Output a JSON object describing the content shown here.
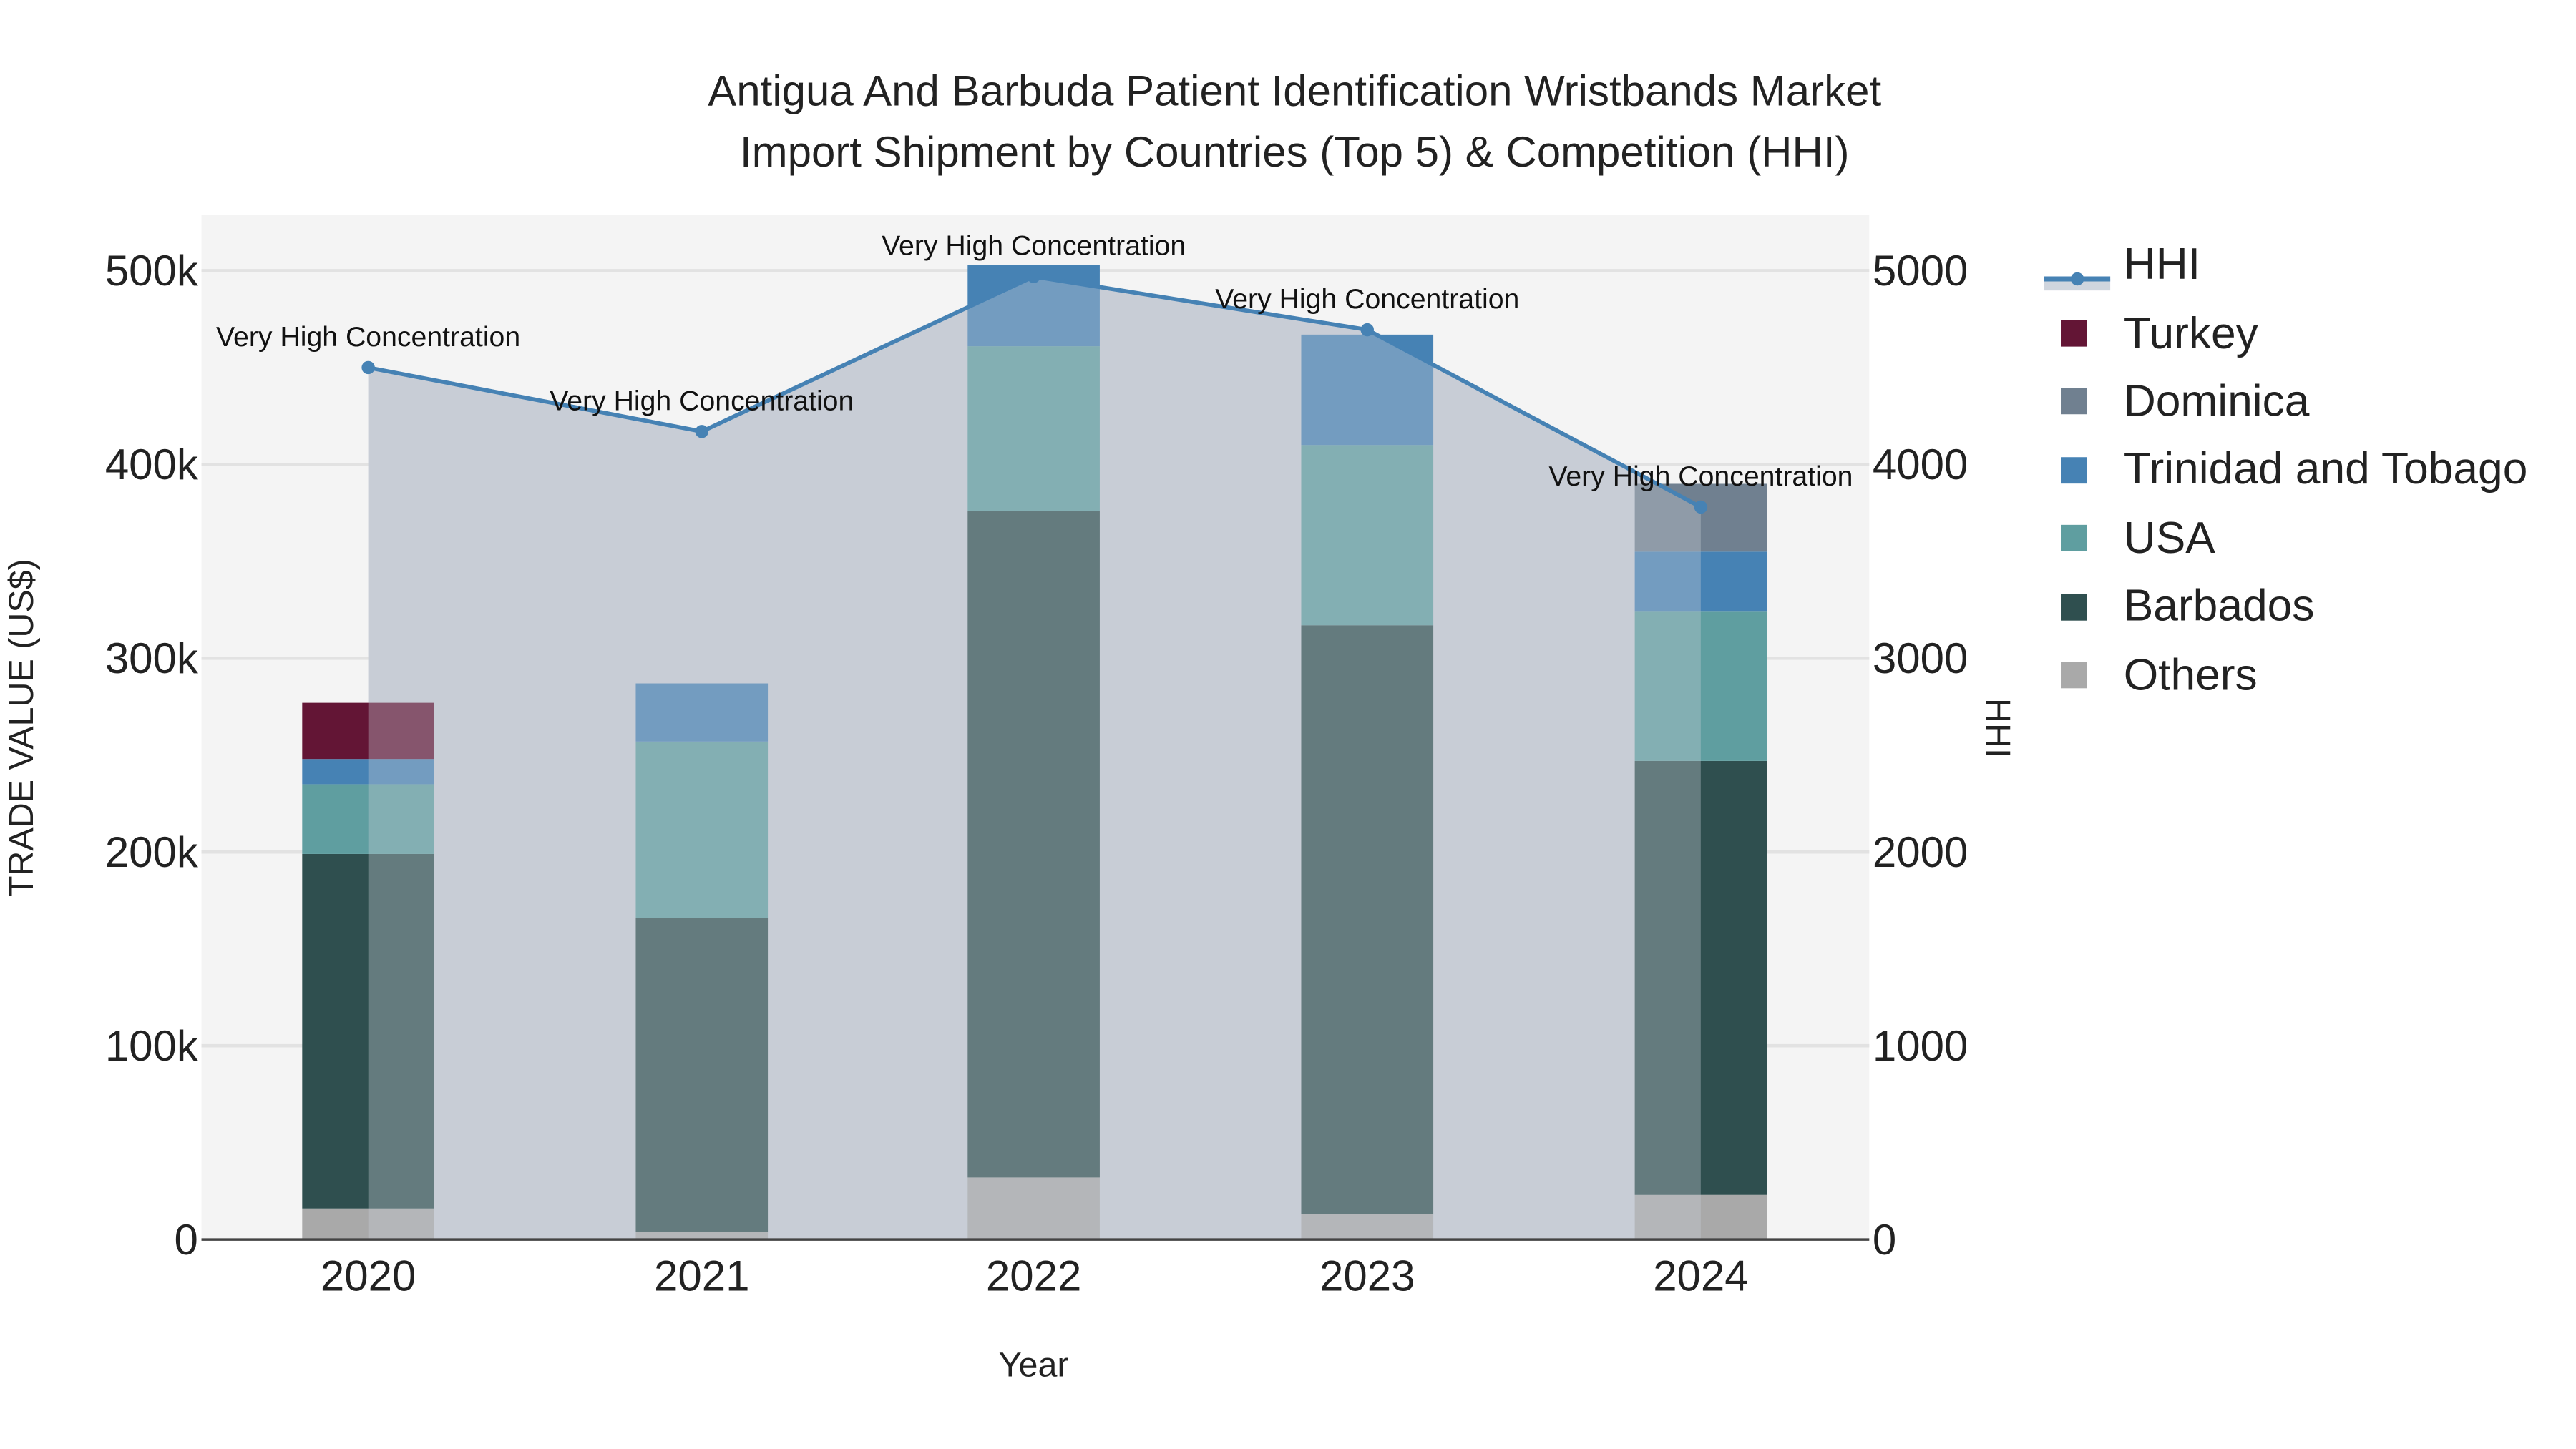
{
  "title": {
    "line1": "Antigua And Barbuda Patient Identification Wristbands Market",
    "line2": "Import Shipment by Countries (Top 5) & Competition (HHI)"
  },
  "axes": {
    "x_label": "Year",
    "y_left_label": "TRADE VALUE (US$)",
    "y_right_label": "HHI",
    "y_left_ticks": [
      "0",
      "100k",
      "200k",
      "300k",
      "400k",
      "500k"
    ],
    "y_right_ticks": [
      "0",
      "1000",
      "2000",
      "3000",
      "4000",
      "5000"
    ],
    "x_ticks": [
      "2020",
      "2021",
      "2022",
      "2023",
      "2024"
    ]
  },
  "legend": [
    {
      "name": "HHI",
      "color": "#4682b4",
      "type": "line"
    },
    {
      "name": "Turkey",
      "color": "#631535",
      "type": "bar"
    },
    {
      "name": "Dominica",
      "color": "#708090",
      "type": "bar"
    },
    {
      "name": "Trinidad and Tobago",
      "color": "#4682b4",
      "type": "bar"
    },
    {
      "name": "USA",
      "color": "#5f9ea0",
      "type": "bar"
    },
    {
      "name": "Barbados",
      "color": "#2f4f4f",
      "type": "bar"
    },
    {
      "name": "Others",
      "color": "#a9a9a9",
      "type": "bar"
    }
  ],
  "annotations": [
    "Very High Concentration",
    "Very High Concentration",
    "Very High Concentration",
    "Very High Concentration",
    "Very High Concentration"
  ],
  "chart_data": {
    "type": "bar",
    "title": "Antigua And Barbuda Patient Identification Wristbands Market Import Shipment by Countries (Top 5) & Competition (HHI)",
    "xlabel": "Year",
    "ylabel": "TRADE VALUE (US$)",
    "y2label": "HHI",
    "ylim": [
      0,
      530000
    ],
    "y2lim": [
      0,
      5300
    ],
    "stacked": true,
    "grid": true,
    "legend_position": "right",
    "categories": [
      "2020",
      "2021",
      "2022",
      "2023",
      "2024"
    ],
    "series": [
      {
        "name": "Others",
        "color": "#a9a9a9",
        "values": [
          16000,
          4000,
          32000,
          13000,
          23000
        ]
      },
      {
        "name": "Barbados",
        "color": "#2f4f4f",
        "values": [
          183000,
          162000,
          344000,
          304000,
          224000
        ]
      },
      {
        "name": "USA",
        "color": "#5f9ea0",
        "values": [
          36000,
          91000,
          85000,
          93000,
          77000
        ]
      },
      {
        "name": "Trinidad and Tobago",
        "color": "#4682b4",
        "values": [
          13000,
          30000,
          42000,
          57000,
          31000
        ]
      },
      {
        "name": "Dominica",
        "color": "#708090",
        "values": [
          0,
          0,
          0,
          0,
          35000
        ]
      },
      {
        "name": "Turkey",
        "color": "#631535",
        "values": [
          29000,
          0,
          0,
          0,
          0
        ]
      }
    ],
    "line_series": {
      "name": "HHI",
      "axis": "right",
      "color": "#4682b4",
      "values": [
        4500,
        4170,
        4970,
        4695,
        3780
      ],
      "labels": [
        "Very High Concentration",
        "Very High Concentration",
        "Very High Concentration",
        "Very High Concentration",
        "Very High Concentration"
      ]
    }
  }
}
